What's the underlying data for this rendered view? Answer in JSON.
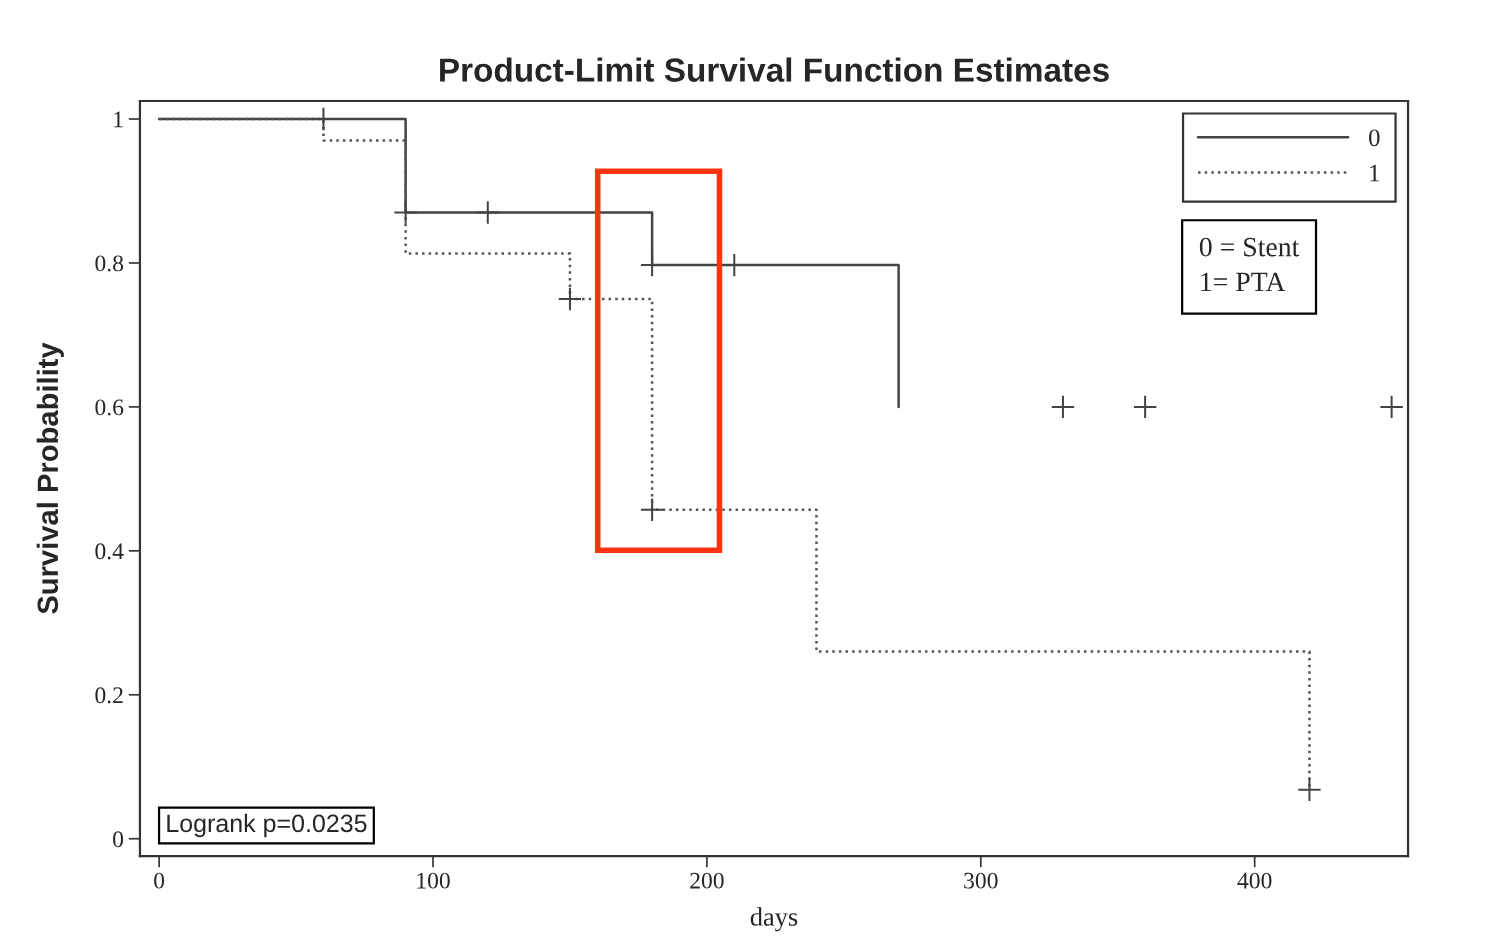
{
  "chart_data": {
    "type": "step",
    "title": "Product-Limit Survival Function Estimates",
    "xlabel": "days",
    "ylabel": "Survival Probability",
    "series": [
      {
        "name": "0",
        "color": "#444444",
        "line_style": "solid",
        "marker": "none",
        "x": [
          0,
          90,
          180,
          270
        ],
        "values": [
          1,
          0.87,
          0.797,
          0.6
        ]
      },
      {
        "name": "1",
        "color": "#555555",
        "line_style": "dotted",
        "marker": "none",
        "x": [
          0,
          60,
          90,
          150,
          180,
          240,
          420
        ],
        "values": [
          1,
          0.97,
          0.813,
          0.75,
          0.457,
          0.26,
          0.068
        ]
      },
      {
        "type": "scatter",
        "color": "#444444",
        "marker": "cross",
        "x": [
          60,
          90,
          120,
          180,
          210,
          330,
          360,
          450
        ],
        "values": [
          1,
          0.87,
          0.87,
          0.797,
          0.797,
          0.6,
          0.6,
          0.6
        ]
      },
      {
        "type": "scatter",
        "color": "#444444",
        "marker": "cross",
        "x": [
          150,
          180,
          420
        ],
        "values": [
          0.75,
          0.457,
          0.068
        ]
      }
    ],
    "annotations": [
      "Logrank p=0.0235",
      "0 = Stent\n1= PTA"
    ],
    "xlim": [
      -7,
      456
    ],
    "xticks": [
      0,
      100,
      200,
      300,
      400
    ],
    "ylim": [
      -0.024,
      1.025
    ],
    "yticks": [
      0,
      0.2,
      0.4,
      0.6,
      0.8,
      1
    ],
    "grid": false,
    "legend": "top right"
  }
}
